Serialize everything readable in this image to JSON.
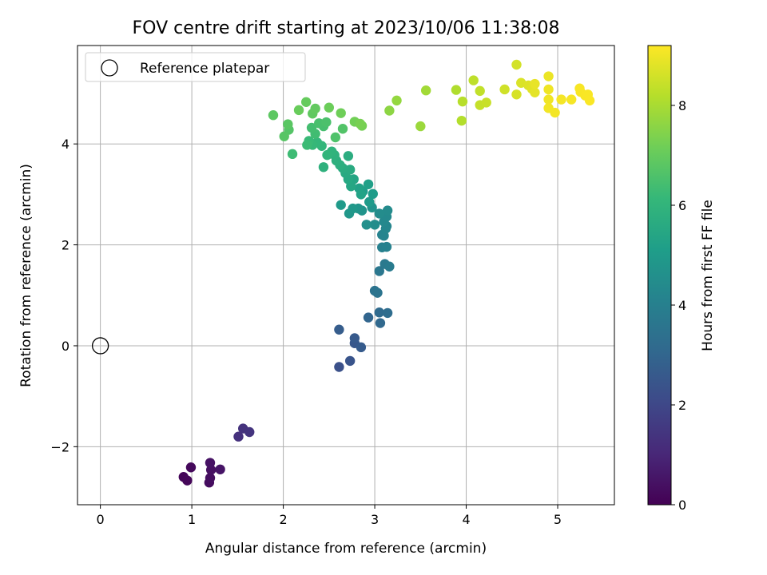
{
  "chart_data": {
    "type": "scatter",
    "title": "FOV centre drift starting at 2023/10/06 11:38:08",
    "xlabel": "Angular distance from reference (arcmin)",
    "ylabel": "Rotation from reference (arcmin)",
    "xlim": [
      -0.25,
      5.62
    ],
    "ylim": [
      -3.15,
      5.95
    ],
    "x_ticks": [
      0,
      1,
      2,
      3,
      4,
      5
    ],
    "y_ticks": [
      -2,
      0,
      2,
      4
    ],
    "grid": true,
    "legend": {
      "position": "top-left",
      "entries": [
        "Reference platepar"
      ]
    },
    "reference_point": {
      "x": 0,
      "y": 0
    },
    "colorbar": {
      "label": "Hours from first FF file",
      "range": [
        0,
        9.2
      ],
      "ticks": [
        0,
        2,
        4,
        6,
        8
      ],
      "colormap": "viridis"
    },
    "points": [
      {
        "x": 0.91,
        "y": -2.6,
        "t": 0.1
      },
      {
        "x": 0.95,
        "y": -2.67,
        "t": 0.15
      },
      {
        "x": 0.99,
        "y": -2.41,
        "t": 0.2
      },
      {
        "x": 1.19,
        "y": -2.71,
        "t": 0.3
      },
      {
        "x": 1.2,
        "y": -2.62,
        "t": 0.35
      },
      {
        "x": 1.21,
        "y": -2.46,
        "t": 0.4
      },
      {
        "x": 1.2,
        "y": -2.32,
        "t": 0.45
      },
      {
        "x": 1.31,
        "y": -2.45,
        "t": 0.5
      },
      {
        "x": 1.51,
        "y": -1.8,
        "t": 1.3
      },
      {
        "x": 1.56,
        "y": -1.64,
        "t": 1.35
      },
      {
        "x": 1.63,
        "y": -1.71,
        "t": 1.4
      },
      {
        "x": 2.61,
        "y": -0.42,
        "t": 2.3
      },
      {
        "x": 2.73,
        "y": -0.3,
        "t": 2.4
      },
      {
        "x": 2.78,
        "y": 0.05,
        "t": 2.5
      },
      {
        "x": 2.78,
        "y": 0.15,
        "t": 2.6
      },
      {
        "x": 2.85,
        "y": -0.03,
        "t": 2.65
      },
      {
        "x": 2.61,
        "y": 0.32,
        "t": 2.7
      },
      {
        "x": 2.93,
        "y": 0.56,
        "t": 3.0
      },
      {
        "x": 3.06,
        "y": 0.45,
        "t": 3.1
      },
      {
        "x": 3.05,
        "y": 0.66,
        "t": 3.2
      },
      {
        "x": 3.14,
        "y": 0.65,
        "t": 3.25
      },
      {
        "x": 3.0,
        "y": 1.09,
        "t": 3.5
      },
      {
        "x": 3.03,
        "y": 1.05,
        "t": 3.55
      },
      {
        "x": 3.05,
        "y": 1.48,
        "t": 3.65
      },
      {
        "x": 3.11,
        "y": 1.62,
        "t": 3.75
      },
      {
        "x": 3.16,
        "y": 1.57,
        "t": 3.8
      },
      {
        "x": 3.08,
        "y": 1.95,
        "t": 4.0
      },
      {
        "x": 3.13,
        "y": 1.96,
        "t": 4.05
      },
      {
        "x": 3.08,
        "y": 2.2,
        "t": 4.1
      },
      {
        "x": 3.1,
        "y": 2.18,
        "t": 4.15
      },
      {
        "x": 3.13,
        "y": 2.37,
        "t": 4.2
      },
      {
        "x": 3.12,
        "y": 2.32,
        "t": 4.25
      },
      {
        "x": 3.1,
        "y": 2.46,
        "t": 4.3
      },
      {
        "x": 3.13,
        "y": 2.56,
        "t": 4.35
      },
      {
        "x": 3.14,
        "y": 2.68,
        "t": 4.4
      },
      {
        "x": 3.05,
        "y": 2.62,
        "t": 4.45
      },
      {
        "x": 3.0,
        "y": 2.4,
        "t": 4.5
      },
      {
        "x": 2.91,
        "y": 2.4,
        "t": 4.6
      },
      {
        "x": 2.97,
        "y": 2.74,
        "t": 4.7
      },
      {
        "x": 2.86,
        "y": 2.68,
        "t": 4.75
      },
      {
        "x": 2.82,
        "y": 2.72,
        "t": 4.8
      },
      {
        "x": 2.72,
        "y": 2.62,
        "t": 4.85
      },
      {
        "x": 2.76,
        "y": 2.72,
        "t": 4.9
      },
      {
        "x": 2.63,
        "y": 2.79,
        "t": 4.95
      },
      {
        "x": 2.94,
        "y": 2.85,
        "t": 5.0
      },
      {
        "x": 2.98,
        "y": 3.01,
        "t": 5.05
      },
      {
        "x": 2.87,
        "y": 3.06,
        "t": 5.1
      },
      {
        "x": 2.93,
        "y": 3.2,
        "t": 5.2
      },
      {
        "x": 2.83,
        "y": 3.12,
        "t": 5.25
      },
      {
        "x": 2.85,
        "y": 3.0,
        "t": 5.3
      },
      {
        "x": 2.77,
        "y": 3.3,
        "t": 5.4
      },
      {
        "x": 2.74,
        "y": 3.16,
        "t": 5.45
      },
      {
        "x": 2.71,
        "y": 3.3,
        "t": 5.5
      },
      {
        "x": 2.68,
        "y": 3.42,
        "t": 5.55
      },
      {
        "x": 2.73,
        "y": 3.49,
        "t": 5.6
      },
      {
        "x": 2.65,
        "y": 3.52,
        "t": 5.65
      },
      {
        "x": 2.71,
        "y": 3.76,
        "t": 5.7
      },
      {
        "x": 2.62,
        "y": 3.58,
        "t": 5.75
      },
      {
        "x": 2.58,
        "y": 3.67,
        "t": 5.8
      },
      {
        "x": 2.44,
        "y": 3.54,
        "t": 5.85
      },
      {
        "x": 2.56,
        "y": 3.78,
        "t": 5.9
      },
      {
        "x": 2.53,
        "y": 3.85,
        "t": 5.95
      },
      {
        "x": 2.48,
        "y": 3.78,
        "t": 6.0
      },
      {
        "x": 2.42,
        "y": 3.96,
        "t": 6.05
      },
      {
        "x": 2.37,
        "y": 4.03,
        "t": 6.1
      },
      {
        "x": 2.32,
        "y": 3.98,
        "t": 6.15
      },
      {
        "x": 2.28,
        "y": 4.06,
        "t": 6.2
      },
      {
        "x": 2.26,
        "y": 3.98,
        "t": 6.25
      },
      {
        "x": 2.1,
        "y": 3.8,
        "t": 6.3
      },
      {
        "x": 2.35,
        "y": 4.2,
        "t": 6.35
      },
      {
        "x": 2.31,
        "y": 4.32,
        "t": 6.4
      },
      {
        "x": 2.44,
        "y": 4.35,
        "t": 6.45
      },
      {
        "x": 2.39,
        "y": 4.41,
        "t": 6.5
      },
      {
        "x": 2.47,
        "y": 4.43,
        "t": 6.55
      },
      {
        "x": 2.57,
        "y": 4.13,
        "t": 6.6
      },
      {
        "x": 2.65,
        "y": 4.3,
        "t": 6.65
      },
      {
        "x": 2.06,
        "y": 4.28,
        "t": 6.7
      },
      {
        "x": 2.01,
        "y": 4.15,
        "t": 6.75
      },
      {
        "x": 2.05,
        "y": 4.39,
        "t": 6.8
      },
      {
        "x": 1.89,
        "y": 4.57,
        "t": 6.85
      },
      {
        "x": 2.32,
        "y": 4.6,
        "t": 6.9
      },
      {
        "x": 2.35,
        "y": 4.7,
        "t": 6.95
      },
      {
        "x": 2.25,
        "y": 4.83,
        "t": 7.0
      },
      {
        "x": 2.17,
        "y": 4.67,
        "t": 7.05
      },
      {
        "x": 2.5,
        "y": 4.72,
        "t": 7.1
      },
      {
        "x": 2.63,
        "y": 4.61,
        "t": 7.15
      },
      {
        "x": 2.78,
        "y": 4.44,
        "t": 7.2
      },
      {
        "x": 2.86,
        "y": 4.36,
        "t": 7.25
      },
      {
        "x": 2.84,
        "y": 4.4,
        "t": 7.3
      },
      {
        "x": 3.16,
        "y": 4.66,
        "t": 7.6
      },
      {
        "x": 3.24,
        "y": 4.86,
        "t": 7.7
      },
      {
        "x": 3.5,
        "y": 4.35,
        "t": 7.8
      },
      {
        "x": 3.56,
        "y": 5.06,
        "t": 7.9
      },
      {
        "x": 3.89,
        "y": 5.07,
        "t": 8.1
      },
      {
        "x": 3.95,
        "y": 4.46,
        "t": 8.15
      },
      {
        "x": 3.96,
        "y": 4.84,
        "t": 8.2
      },
      {
        "x": 4.08,
        "y": 5.26,
        "t": 8.3
      },
      {
        "x": 4.15,
        "y": 5.05,
        "t": 8.35
      },
      {
        "x": 4.15,
        "y": 4.77,
        "t": 8.4
      },
      {
        "x": 4.22,
        "y": 4.82,
        "t": 8.45
      },
      {
        "x": 4.42,
        "y": 5.08,
        "t": 8.55
      },
      {
        "x": 4.55,
        "y": 5.57,
        "t": 8.6
      },
      {
        "x": 4.55,
        "y": 4.98,
        "t": 8.65
      },
      {
        "x": 4.6,
        "y": 5.21,
        "t": 8.7
      },
      {
        "x": 4.68,
        "y": 5.16,
        "t": 8.75
      },
      {
        "x": 4.72,
        "y": 5.09,
        "t": 8.8
      },
      {
        "x": 4.75,
        "y": 5.02,
        "t": 8.85
      },
      {
        "x": 4.75,
        "y": 5.19,
        "t": 8.9
      },
      {
        "x": 4.9,
        "y": 5.34,
        "t": 8.95
      },
      {
        "x": 4.9,
        "y": 5.08,
        "t": 9.0
      },
      {
        "x": 4.9,
        "y": 4.88,
        "t": 9.02
      },
      {
        "x": 4.9,
        "y": 4.71,
        "t": 9.04
      },
      {
        "x": 4.97,
        "y": 4.62,
        "t": 9.06
      },
      {
        "x": 5.04,
        "y": 4.88,
        "t": 9.08
      },
      {
        "x": 5.15,
        "y": 4.88,
        "t": 9.1
      },
      {
        "x": 5.24,
        "y": 5.1,
        "t": 9.12
      },
      {
        "x": 5.25,
        "y": 5.03,
        "t": 9.13
      },
      {
        "x": 5.3,
        "y": 4.96,
        "t": 9.14
      },
      {
        "x": 5.33,
        "y": 4.98,
        "t": 9.15
      },
      {
        "x": 5.35,
        "y": 4.86,
        "t": 9.16
      }
    ]
  }
}
